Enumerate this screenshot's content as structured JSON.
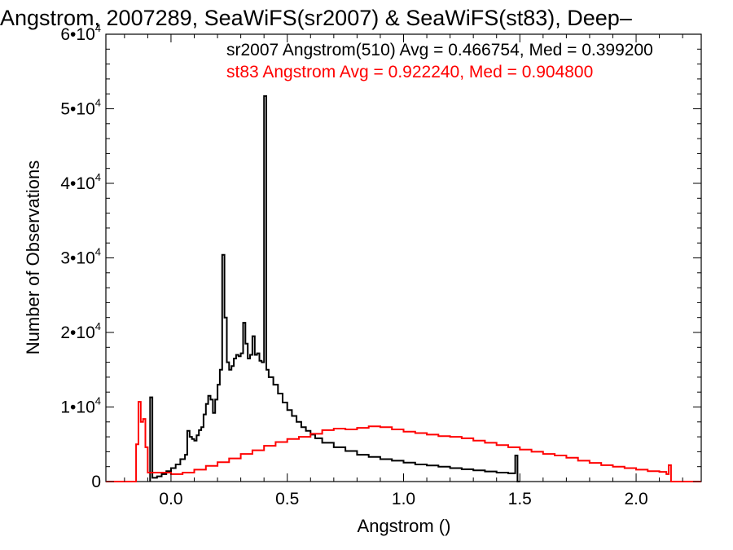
{
  "chart_data": {
    "type": "line",
    "title": "Angstrom, 2007289, SeaWiFS(sr2007) & SeaWiFS(st83), Deep–",
    "xlabel": "Angstrom ()",
    "ylabel": "Number of Observations",
    "xlim": [
      -0.28,
      2.28
    ],
    "ylim": [
      0,
      60000
    ],
    "x_ticks": [
      {
        "value": 0.0,
        "label": "0.0"
      },
      {
        "value": 0.5,
        "label": "0.5"
      },
      {
        "value": 1.0,
        "label": "1.0"
      },
      {
        "value": 1.5,
        "label": "1.5"
      },
      {
        "value": 2.0,
        "label": "2.0"
      }
    ],
    "y_ticks": [
      {
        "value": 0,
        "base": "0",
        "exp": ""
      },
      {
        "value": 10000,
        "base": "1•10",
        "exp": "4"
      },
      {
        "value": 20000,
        "base": "2•10",
        "exp": "4"
      },
      {
        "value": 30000,
        "base": "3•10",
        "exp": "4"
      },
      {
        "value": 40000,
        "base": "4•10",
        "exp": "4"
      },
      {
        "value": 50000,
        "base": "5•10",
        "exp": "4"
      },
      {
        "value": 60000,
        "base": "6•10",
        "exp": "4"
      }
    ],
    "annotations": [
      {
        "text": "sr2007 Angstrom(510) Avg = 0.466754, Med = 0.399200",
        "color": "#000000"
      },
      {
        "text": "st83 Angstrom Avg = 0.922240, Med = 0.904800",
        "color": "#ff0000"
      }
    ],
    "series": [
      {
        "color": "#000000",
        "points": [
          [
            -0.09,
            0
          ],
          [
            -0.09,
            11300
          ],
          [
            -0.08,
            11300
          ],
          [
            -0.08,
            500
          ],
          [
            -0.06,
            700
          ],
          [
            -0.04,
            1000
          ],
          [
            -0.02,
            1400
          ],
          [
            0.0,
            1800
          ],
          [
            0.02,
            2300
          ],
          [
            0.04,
            3000
          ],
          [
            0.06,
            3600
          ],
          [
            0.07,
            6800
          ],
          [
            0.08,
            6000
          ],
          [
            0.09,
            5700
          ],
          [
            0.1,
            5500
          ],
          [
            0.11,
            6200
          ],
          [
            0.12,
            6900
          ],
          [
            0.13,
            7300
          ],
          [
            0.14,
            9000
          ],
          [
            0.15,
            10400
          ],
          [
            0.16,
            11500
          ],
          [
            0.17,
            11000
          ],
          [
            0.18,
            9200
          ],
          [
            0.19,
            11000
          ],
          [
            0.2,
            13000
          ],
          [
            0.21,
            15000
          ],
          [
            0.22,
            30400
          ],
          [
            0.23,
            22000
          ],
          [
            0.24,
            16000
          ],
          [
            0.25,
            15000
          ],
          [
            0.26,
            15500
          ],
          [
            0.27,
            16500
          ],
          [
            0.28,
            17000
          ],
          [
            0.29,
            16800
          ],
          [
            0.3,
            17200
          ],
          [
            0.31,
            21300
          ],
          [
            0.32,
            18500
          ],
          [
            0.33,
            16500
          ],
          [
            0.34,
            17000
          ],
          [
            0.35,
            19500
          ],
          [
            0.36,
            17000
          ],
          [
            0.37,
            17200
          ],
          [
            0.38,
            16200
          ],
          [
            0.39,
            16000
          ],
          [
            0.4,
            51700
          ],
          [
            0.41,
            15000
          ],
          [
            0.42,
            14000
          ],
          [
            0.44,
            13000
          ],
          [
            0.46,
            11800
          ],
          [
            0.48,
            10600
          ],
          [
            0.5,
            9600
          ],
          [
            0.52,
            8800
          ],
          [
            0.54,
            8000
          ],
          [
            0.56,
            7300
          ],
          [
            0.58,
            6800
          ],
          [
            0.6,
            6300
          ],
          [
            0.62,
            5800
          ],
          [
            0.65,
            5200
          ],
          [
            0.7,
            4600
          ],
          [
            0.75,
            4100
          ],
          [
            0.8,
            3600
          ],
          [
            0.85,
            3300
          ],
          [
            0.9,
            3000
          ],
          [
            0.95,
            2800
          ],
          [
            1.0,
            2550
          ],
          [
            1.05,
            2300
          ],
          [
            1.1,
            2150
          ],
          [
            1.15,
            2000
          ],
          [
            1.2,
            1800
          ],
          [
            1.25,
            1650
          ],
          [
            1.3,
            1500
          ],
          [
            1.35,
            1350
          ],
          [
            1.4,
            1200
          ],
          [
            1.45,
            1100
          ],
          [
            1.48,
            3500
          ],
          [
            1.49,
            0
          ],
          [
            1.5,
            0
          ]
        ]
      },
      {
        "color": "#ff0000",
        "points": [
          [
            -0.28,
            0
          ],
          [
            -0.16,
            0
          ],
          [
            -0.15,
            5000
          ],
          [
            -0.14,
            10700
          ],
          [
            -0.13,
            8000
          ],
          [
            -0.12,
            8400
          ],
          [
            -0.11,
            4600
          ],
          [
            -0.1,
            1200
          ],
          [
            0.0,
            1000
          ],
          [
            0.05,
            1200
          ],
          [
            0.1,
            1600
          ],
          [
            0.15,
            2100
          ],
          [
            0.2,
            2600
          ],
          [
            0.25,
            3100
          ],
          [
            0.3,
            3700
          ],
          [
            0.35,
            4200
          ],
          [
            0.4,
            4800
          ],
          [
            0.45,
            5300
          ],
          [
            0.5,
            5700
          ],
          [
            0.55,
            6000
          ],
          [
            0.6,
            6400
          ],
          [
            0.65,
            6900
          ],
          [
            0.7,
            7100
          ],
          [
            0.75,
            7000
          ],
          [
            0.8,
            7200
          ],
          [
            0.85,
            7400
          ],
          [
            0.9,
            7300
          ],
          [
            0.95,
            7000
          ],
          [
            1.0,
            6700
          ],
          [
            1.05,
            6500
          ],
          [
            1.1,
            6300
          ],
          [
            1.15,
            6100
          ],
          [
            1.2,
            6000
          ],
          [
            1.25,
            5800
          ],
          [
            1.3,
            5500
          ],
          [
            1.35,
            5200
          ],
          [
            1.4,
            4900
          ],
          [
            1.45,
            4600
          ],
          [
            1.5,
            4300
          ],
          [
            1.55,
            4000
          ],
          [
            1.6,
            3700
          ],
          [
            1.65,
            3500
          ],
          [
            1.7,
            3200
          ],
          [
            1.75,
            2800
          ],
          [
            1.8,
            2500
          ],
          [
            1.85,
            2200
          ],
          [
            1.9,
            2000
          ],
          [
            1.95,
            1800
          ],
          [
            2.0,
            1600
          ],
          [
            2.05,
            1400
          ],
          [
            2.1,
            1300
          ],
          [
            2.13,
            1000
          ],
          [
            2.14,
            2200
          ],
          [
            2.15,
            0
          ],
          [
            2.28,
            0
          ]
        ]
      }
    ]
  }
}
